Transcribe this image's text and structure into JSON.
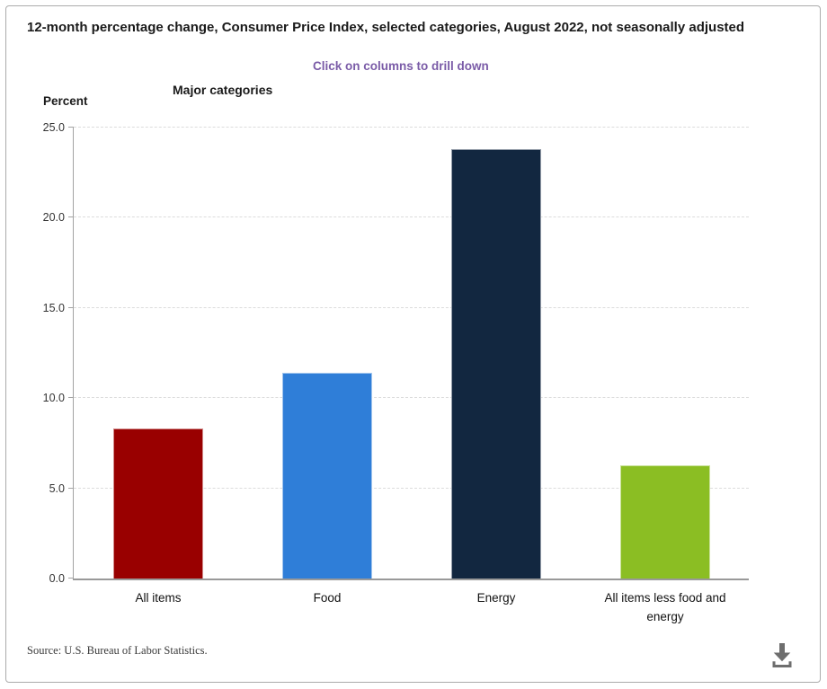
{
  "header": {
    "title": "12-month percentage change, Consumer Price Index, selected categories, August 2022, not seasonally adjusted",
    "drill_note": "Click on columns to drill down",
    "chart_label": "Major categories",
    "axis_label": "Percent"
  },
  "chart_data": {
    "type": "bar",
    "title": "Major categories",
    "categories": [
      "All items",
      "Food",
      "Energy",
      "All items less food and energy"
    ],
    "values": [
      8.3,
      11.4,
      23.8,
      6.3
    ],
    "bar_colors": [
      "#990000",
      "#2F7ED8",
      "#122740",
      "#8BBE23"
    ],
    "xlabel": "",
    "ylabel": "Percent",
    "ylim": [
      0,
      25
    ],
    "y_ticks": [
      0,
      5,
      10,
      15,
      20,
      25
    ],
    "tick_decimals": 1,
    "grid": "horizontal-dashed",
    "legend": "none"
  },
  "footer": {
    "source": "Source: U.S. Bureau of Labor Statistics.",
    "download_icon": "download-icon"
  },
  "colors": {
    "drill_note": "#7a5ba7",
    "axis_line": "#a3a3a3",
    "baseline": "#999999",
    "gridline": "#dcdcdc",
    "frame_border": "#ababab"
  }
}
